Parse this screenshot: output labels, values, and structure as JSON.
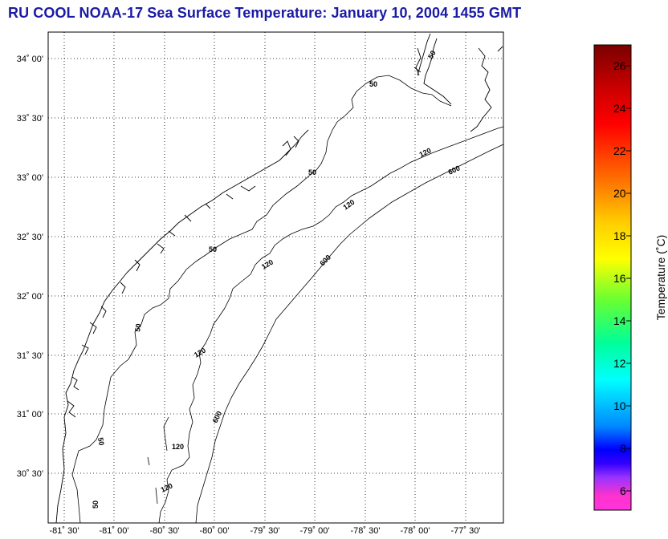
{
  "title": "RU COOL  NOAA-17  Sea Surface Temperature:  January 10, 2004 1455 GMT",
  "map": {
    "lat_ticks": [
      "34˚ 00'",
      "33˚ 30'",
      "33˚ 00'",
      "32˚ 30'",
      "32˚ 00'",
      "31˚ 30'",
      "31˚ 00'",
      "30˚ 30'"
    ],
    "lon_ticks": [
      "-81˚ 30'",
      "-81˚ 00'",
      "-80˚ 30'",
      "-80˚ 00'",
      "-79˚ 30'",
      "-79˚ 00'",
      "-78˚ 30'",
      "-78˚ 00'",
      "-77˚ 30'"
    ],
    "grid": "dotted",
    "contour_labels": {
      "c50_a": "50",
      "c50_b": "50",
      "c50_c": "50",
      "c50_d": "50",
      "c50_e": "50",
      "c50_f": "50",
      "c120_a": "120",
      "c120_b": "120",
      "c120_c": "120",
      "c120_d": "120",
      "c120_e": "120",
      "c120_f": "120",
      "c600_a": "600",
      "c600_b": "600",
      "c600_c": "600"
    }
  },
  "colorbar": {
    "ticks": [
      "26",
      "24",
      "22",
      "20",
      "18",
      "16",
      "14",
      "12",
      "10",
      "8",
      "6"
    ],
    "label": "Temperature (˚C)",
    "colors": [
      "#7a0000",
      "#ff0000",
      "#ff8800",
      "#ffff00",
      "#66ff33",
      "#00ffaa",
      "#00ffff",
      "#0088ff",
      "#0000ff",
      "#8833ff",
      "#ff33cc"
    ]
  }
}
